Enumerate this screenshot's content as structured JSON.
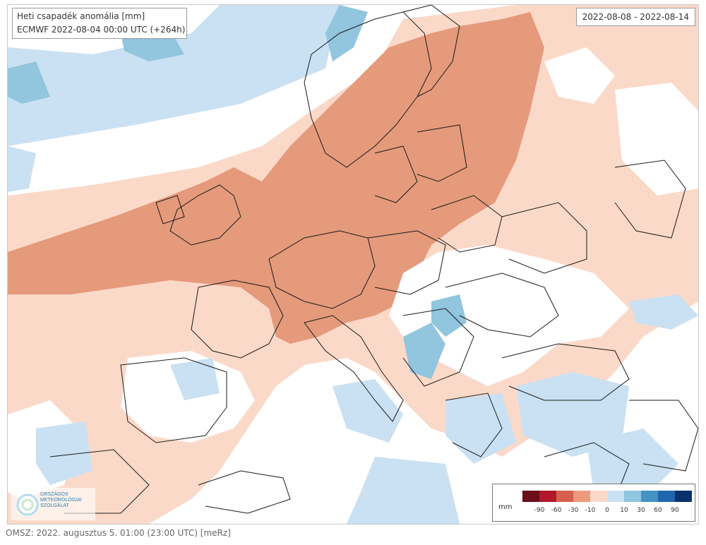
{
  "header": {
    "title": "Heti csapadék anomália [mm]",
    "run": "ECMWF 2022-08-04 00:00 UTC (+264h)",
    "period": "2022-08-08 - 2022-08-14"
  },
  "legend": {
    "unit": "mm",
    "ticks": [
      "-90",
      "-60",
      "-30",
      "-10",
      "0",
      "10",
      "30",
      "60",
      "90"
    ],
    "colors": [
      "#6b0f1a",
      "#b2182b",
      "#d6604d",
      "#ec9b7c",
      "#fbd9c9",
      "#c9e1f2",
      "#92c5de",
      "#4393c3",
      "#2166ac",
      "#08306b"
    ]
  },
  "logo": {
    "lines": [
      "ORSZÁGOS",
      "METEOROLÓGIAI",
      "SZOLGÁLAT"
    ]
  },
  "footer": {
    "caption": "OMSZ: 2022. augusztus 5. 01:00 (23:00  UTC)  [meRz]"
  },
  "map": {
    "background": "#ffffff",
    "palette": {
      "dry_strong": "#e59a7b",
      "dry_light": "#fbd9c9",
      "wet_light": "#c9e1f2",
      "wet_mid": "#92c5de",
      "border": "#1a1a1a"
    }
  }
}
